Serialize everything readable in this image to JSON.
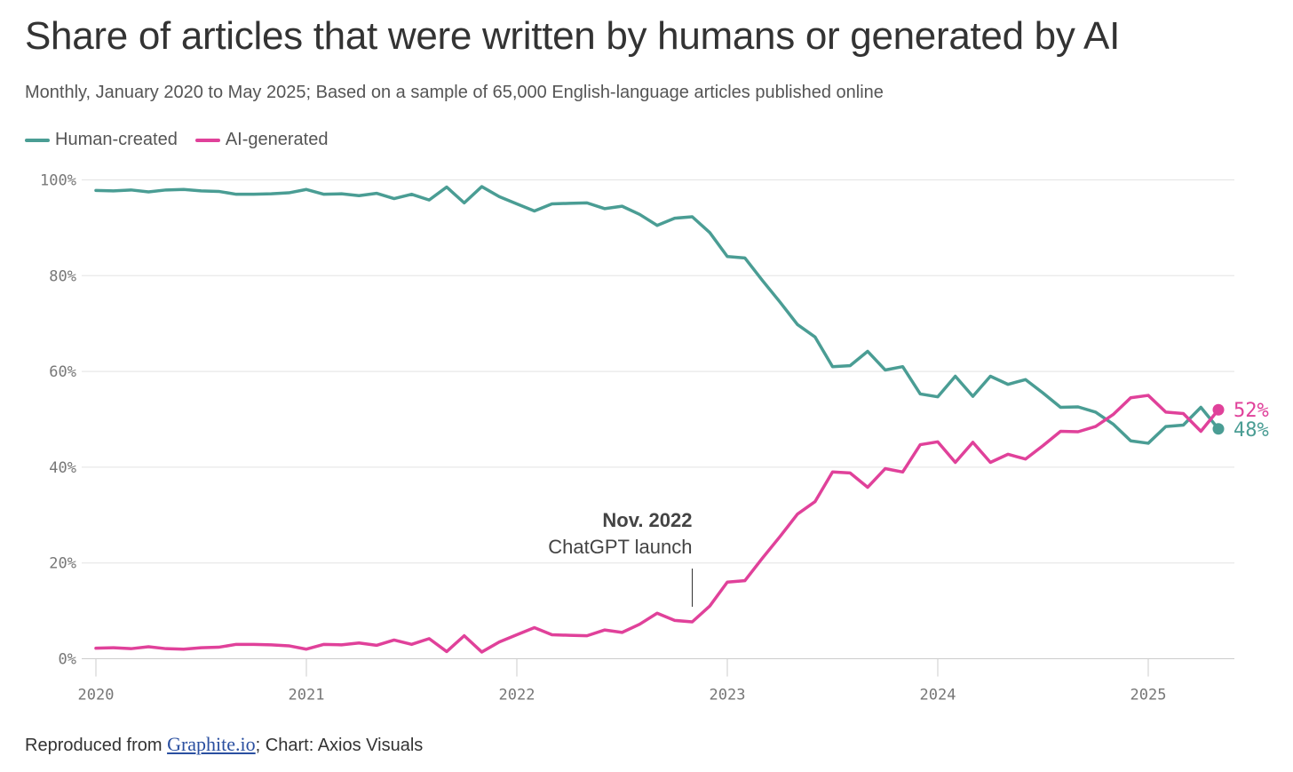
{
  "title": "Share of articles that were written by humans or generated by AI",
  "subtitle": "Monthly, January 2020 to May 2025; Based on a sample of 65,000 English-language articles published online",
  "footer": {
    "prefix": "Reproduced from ",
    "link": "Graphite.io",
    "suffix": "; Chart: Axios Visuals"
  },
  "colors": {
    "human": "#4a9d94",
    "ai": "#e0419a",
    "grid": "#e3e3e3",
    "axis": "#cccccc"
  },
  "chart_data": {
    "type": "line",
    "title": "Share of articles that were written by humans or generated by AI",
    "xlabel": "",
    "ylabel": "",
    "ylim": [
      0,
      100
    ],
    "y_ticks": [
      0,
      20,
      40,
      60,
      80,
      100
    ],
    "y_tick_labels": [
      "0%",
      "20%",
      "40%",
      "60%",
      "80%",
      "100%"
    ],
    "x_ticks": [
      0,
      12,
      24,
      36,
      48,
      60
    ],
    "x_tick_labels": [
      "2020",
      "2021",
      "2022",
      "2023",
      "2024",
      "2025"
    ],
    "grid": true,
    "legend": "top-left",
    "x_start": "2020-01",
    "x_end": "2025-05",
    "series": [
      {
        "name": "Human-created",
        "values": [
          97.8,
          97.7,
          97.9,
          97.5,
          97.9,
          98.0,
          97.7,
          97.6,
          97.0,
          97.0,
          97.1,
          97.3,
          98.0,
          97.0,
          97.1,
          96.7,
          97.2,
          96.1,
          97.0,
          95.8,
          98.5,
          95.2,
          98.6,
          96.5,
          95.0,
          93.5,
          95.0,
          95.1,
          95.2,
          94.0,
          94.5,
          92.8,
          90.5,
          92.0,
          92.3,
          89.0,
          84.0,
          83.7,
          79.0,
          74.5,
          69.8,
          67.2,
          61.0,
          61.2,
          64.2,
          60.3,
          61.0,
          55.3,
          54.7,
          59.0,
          54.8,
          59.0,
          57.3,
          58.3,
          55.5,
          52.5,
          52.6,
          51.5,
          49.0,
          45.5,
          45.0,
          48.5,
          48.8,
          52.5,
          48.0
        ],
        "end_label": "48%"
      },
      {
        "name": "AI-generated",
        "values": [
          2.2,
          2.3,
          2.1,
          2.5,
          2.1,
          2.0,
          2.3,
          2.4,
          3.0,
          3.0,
          2.9,
          2.7,
          2.0,
          3.0,
          2.9,
          3.3,
          2.8,
          3.9,
          3.0,
          4.2,
          1.5,
          4.8,
          1.4,
          3.5,
          5.0,
          6.5,
          5.0,
          4.9,
          4.8,
          6.0,
          5.5,
          7.2,
          9.5,
          8.0,
          7.7,
          11.0,
          16.0,
          16.3,
          21.0,
          25.5,
          30.2,
          32.8,
          39.0,
          38.8,
          35.8,
          39.7,
          39.0,
          44.7,
          45.3,
          41.0,
          45.2,
          41.0,
          42.7,
          41.7,
          44.5,
          47.5,
          47.4,
          48.5,
          51.0,
          54.5,
          55.0,
          51.5,
          51.2,
          47.5,
          52.0
        ],
        "end_label": "52%"
      }
    ],
    "annotations": [
      {
        "x": "2022-11",
        "label_line1": "Nov. 2022",
        "label_line2": "ChatGPT launch"
      }
    ]
  }
}
